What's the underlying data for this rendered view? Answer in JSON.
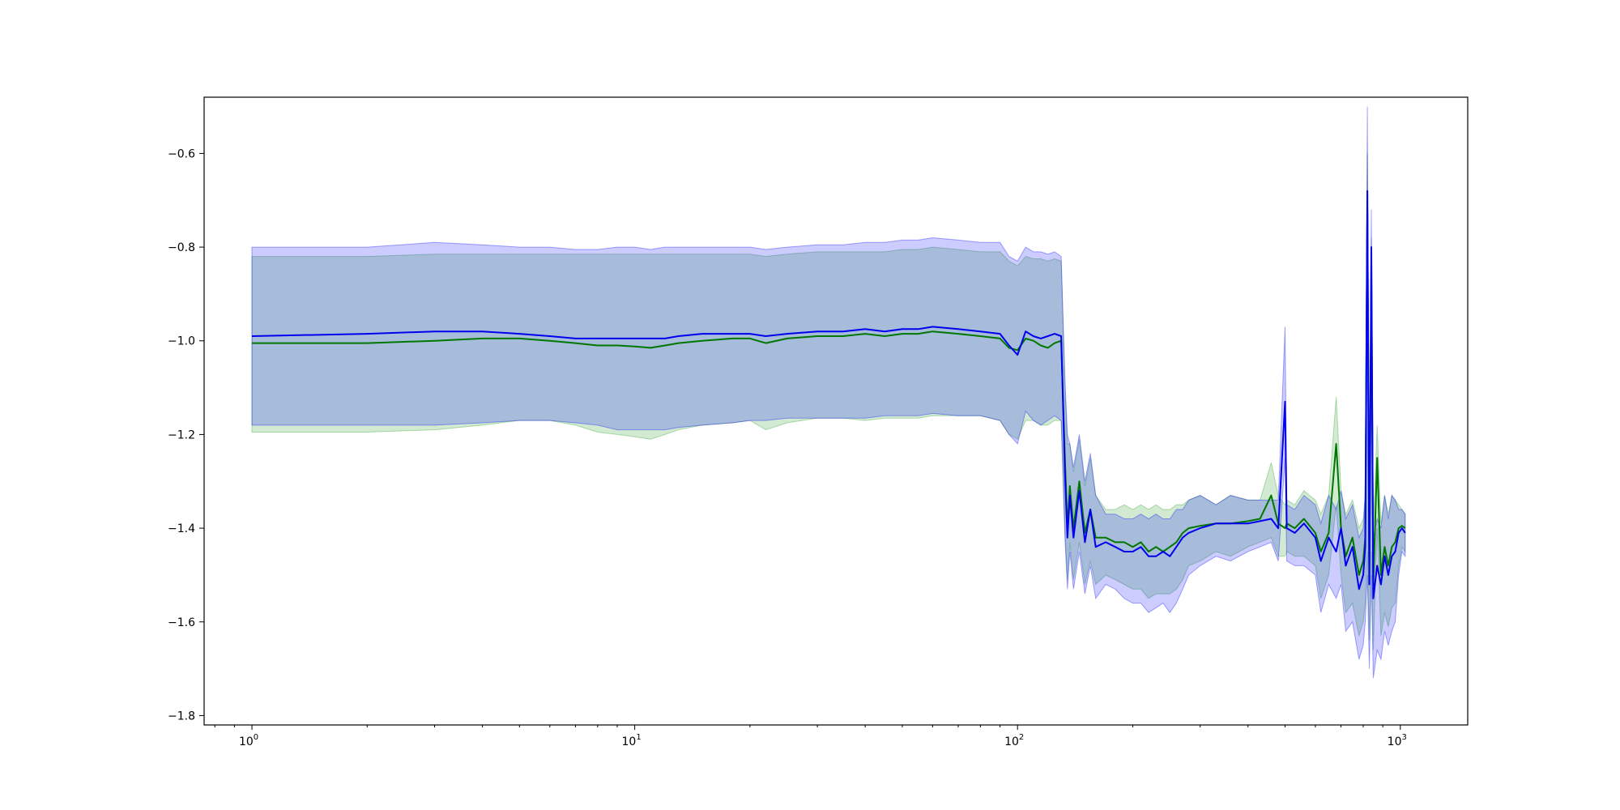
{
  "chart_data": {
    "type": "line",
    "title": "",
    "xlabel": "",
    "ylabel": "",
    "xscale": "log",
    "xlim": [
      0.75,
      1500
    ],
    "ylim": [
      -1.82,
      -0.48
    ],
    "grid": false,
    "legend": "none",
    "x_ticks": [
      {
        "base": "10",
        "exp": "0",
        "value": 1
      },
      {
        "base": "10",
        "exp": "1",
        "value": 10
      },
      {
        "base": "10",
        "exp": "2",
        "value": 100
      },
      {
        "base": "10",
        "exp": "3",
        "value": 1000
      }
    ],
    "y_ticks": [
      {
        "label": "−0.6",
        "value": -0.6
      },
      {
        "label": "−0.8",
        "value": -0.8
      },
      {
        "label": "−1.0",
        "value": -1.0
      },
      {
        "label": "−1.2",
        "value": -1.2
      },
      {
        "label": "−1.4",
        "value": -1.4
      },
      {
        "label": "−1.6",
        "value": -1.6
      },
      {
        "label": "−1.8",
        "value": -1.8
      }
    ],
    "colors": {
      "blue_line": "#0000ee",
      "green_line": "#007700",
      "blue_band": "#0000ff",
      "green_band": "#2ca02c"
    },
    "series": [
      {
        "color": "#0000ee",
        "band_color": "#0000ff",
        "points": [
          [
            1,
            -0.99,
            -1.18,
            -0.8
          ],
          [
            2,
            -0.985,
            -1.18,
            -0.8
          ],
          [
            3,
            -0.98,
            -1.18,
            -0.79
          ],
          [
            4,
            -0.98,
            -1.175,
            -0.795
          ],
          [
            5,
            -0.985,
            -1.17,
            -0.8
          ],
          [
            6,
            -0.99,
            -1.17,
            -0.8
          ],
          [
            7,
            -0.995,
            -1.175,
            -0.805
          ],
          [
            8,
            -0.995,
            -1.18,
            -0.805
          ],
          [
            9,
            -0.995,
            -1.19,
            -0.8
          ],
          [
            10,
            -0.995,
            -1.19,
            -0.8
          ],
          [
            11,
            -0.995,
            -1.19,
            -0.805
          ],
          [
            12,
            -0.995,
            -1.19,
            -0.8
          ],
          [
            13,
            -0.99,
            -1.185,
            -0.8
          ],
          [
            15,
            -0.985,
            -1.18,
            -0.8
          ],
          [
            18,
            -0.985,
            -1.175,
            -0.8
          ],
          [
            20,
            -0.985,
            -1.17,
            -0.8
          ],
          [
            22,
            -0.99,
            -1.17,
            -0.805
          ],
          [
            25,
            -0.985,
            -1.165,
            -0.8
          ],
          [
            30,
            -0.98,
            -1.165,
            -0.795
          ],
          [
            35,
            -0.98,
            -1.165,
            -0.795
          ],
          [
            40,
            -0.975,
            -1.165,
            -0.79
          ],
          [
            45,
            -0.98,
            -1.16,
            -0.79
          ],
          [
            50,
            -0.975,
            -1.16,
            -0.785
          ],
          [
            55,
            -0.975,
            -1.16,
            -0.785
          ],
          [
            60,
            -0.97,
            -1.155,
            -0.78
          ],
          [
            70,
            -0.975,
            -1.16,
            -0.785
          ],
          [
            80,
            -0.98,
            -1.16,
            -0.79
          ],
          [
            90,
            -0.985,
            -1.17,
            -0.79
          ],
          [
            95,
            -1.01,
            -1.2,
            -0.82
          ],
          [
            100,
            -1.03,
            -1.22,
            -0.83
          ],
          [
            105,
            -0.98,
            -1.15,
            -0.8
          ],
          [
            110,
            -0.99,
            -1.17,
            -0.81
          ],
          [
            115,
            -0.995,
            -1.18,
            -0.81
          ],
          [
            120,
            -0.99,
            -1.17,
            -0.815
          ],
          [
            125,
            -0.985,
            -1.16,
            -0.81
          ],
          [
            130,
            -0.99,
            -1.17,
            -0.82
          ],
          [
            133,
            -1.28,
            -1.42,
            -1.08
          ],
          [
            135,
            -1.42,
            -1.53,
            -1.2
          ],
          [
            137,
            -1.33,
            -1.45,
            -1.22
          ],
          [
            140,
            -1.42,
            -1.53,
            -1.27
          ],
          [
            145,
            -1.32,
            -1.45,
            -1.2
          ],
          [
            150,
            -1.43,
            -1.54,
            -1.3
          ],
          [
            155,
            -1.36,
            -1.48,
            -1.24
          ],
          [
            160,
            -1.44,
            -1.55,
            -1.33
          ],
          [
            170,
            -1.43,
            -1.52,
            -1.37
          ],
          [
            180,
            -1.44,
            -1.53,
            -1.37
          ],
          [
            190,
            -1.45,
            -1.55,
            -1.38
          ],
          [
            200,
            -1.45,
            -1.56,
            -1.38
          ],
          [
            210,
            -1.44,
            -1.56,
            -1.37
          ],
          [
            220,
            -1.46,
            -1.58,
            -1.38
          ],
          [
            230,
            -1.46,
            -1.57,
            -1.37
          ],
          [
            240,
            -1.45,
            -1.56,
            -1.38
          ],
          [
            250,
            -1.46,
            -1.58,
            -1.38
          ],
          [
            260,
            -1.44,
            -1.56,
            -1.36
          ],
          [
            270,
            -1.42,
            -1.53,
            -1.36
          ],
          [
            280,
            -1.41,
            -1.5,
            -1.34
          ],
          [
            300,
            -1.4,
            -1.48,
            -1.33
          ],
          [
            330,
            -1.39,
            -1.46,
            -1.35
          ],
          [
            360,
            -1.39,
            -1.47,
            -1.33
          ],
          [
            400,
            -1.39,
            -1.45,
            -1.34
          ],
          [
            430,
            -1.385,
            -1.44,
            -1.34
          ],
          [
            460,
            -1.38,
            -1.43,
            -1.34
          ],
          [
            480,
            -1.4,
            -1.47,
            -1.34
          ],
          [
            500,
            -1.13,
            -1.25,
            -0.97
          ],
          [
            505,
            -1.4,
            -1.47,
            -1.35
          ],
          [
            530,
            -1.41,
            -1.48,
            -1.36
          ],
          [
            560,
            -1.39,
            -1.48,
            -1.33
          ],
          [
            600,
            -1.42,
            -1.5,
            -1.35
          ],
          [
            620,
            -1.47,
            -1.58,
            -1.39
          ],
          [
            650,
            -1.42,
            -1.52,
            -1.33
          ],
          [
            680,
            -1.45,
            -1.55,
            -1.36
          ],
          [
            700,
            -1.4,
            -1.52,
            -1.32
          ],
          [
            720,
            -1.48,
            -1.62,
            -1.38
          ],
          [
            750,
            -1.44,
            -1.6,
            -1.35
          ],
          [
            780,
            -1.53,
            -1.68,
            -1.42
          ],
          [
            800,
            -1.5,
            -1.65,
            -1.4
          ],
          [
            810,
            -1.44,
            -1.6,
            -1.33
          ],
          [
            820,
            -0.68,
            -1.5,
            -0.5
          ],
          [
            830,
            -1.52,
            -1.7,
            -1.4
          ],
          [
            840,
            -0.8,
            -1.5,
            -0.72
          ],
          [
            850,
            -1.55,
            -1.72,
            -1.42
          ],
          [
            870,
            -1.48,
            -1.66,
            -1.38
          ],
          [
            890,
            -1.52,
            -1.68,
            -1.4
          ],
          [
            910,
            -1.46,
            -1.62,
            -1.33
          ],
          [
            930,
            -1.5,
            -1.65,
            -1.38
          ],
          [
            950,
            -1.46,
            -1.62,
            -1.33
          ],
          [
            970,
            -1.45,
            -1.6,
            -1.34
          ],
          [
            990,
            -1.41,
            -1.5,
            -1.36
          ],
          [
            1010,
            -1.4,
            -1.45,
            -1.36
          ],
          [
            1030,
            -1.41,
            -1.46,
            -1.37
          ]
        ]
      },
      {
        "color": "#007700",
        "band_color": "#2ca02c",
        "points": [
          [
            1,
            -1.005,
            -1.195,
            -0.82
          ],
          [
            2,
            -1.005,
            -1.195,
            -0.82
          ],
          [
            3,
            -1.0,
            -1.19,
            -0.815
          ],
          [
            4,
            -0.995,
            -1.18,
            -0.815
          ],
          [
            5,
            -0.995,
            -1.17,
            -0.815
          ],
          [
            6,
            -1.0,
            -1.17,
            -0.815
          ],
          [
            7,
            -1.005,
            -1.18,
            -0.815
          ],
          [
            8,
            -1.01,
            -1.195,
            -0.815
          ],
          [
            9,
            -1.01,
            -1.2,
            -0.815
          ],
          [
            10,
            -1.012,
            -1.205,
            -0.815
          ],
          [
            11,
            -1.015,
            -1.21,
            -0.815
          ],
          [
            12,
            -1.01,
            -1.2,
            -0.815
          ],
          [
            13,
            -1.005,
            -1.19,
            -0.815
          ],
          [
            15,
            -1.0,
            -1.18,
            -0.815
          ],
          [
            18,
            -0.995,
            -1.175,
            -0.815
          ],
          [
            20,
            -0.995,
            -1.17,
            -0.815
          ],
          [
            22,
            -1.005,
            -1.19,
            -0.82
          ],
          [
            25,
            -0.995,
            -1.175,
            -0.815
          ],
          [
            30,
            -0.99,
            -1.165,
            -0.81
          ],
          [
            35,
            -0.99,
            -1.165,
            -0.81
          ],
          [
            40,
            -0.985,
            -1.17,
            -0.81
          ],
          [
            45,
            -0.99,
            -1.165,
            -0.81
          ],
          [
            50,
            -0.985,
            -1.165,
            -0.805
          ],
          [
            55,
            -0.985,
            -1.165,
            -0.805
          ],
          [
            60,
            -0.98,
            -1.16,
            -0.8
          ],
          [
            70,
            -0.985,
            -1.16,
            -0.805
          ],
          [
            80,
            -0.99,
            -1.16,
            -0.81
          ],
          [
            90,
            -0.995,
            -1.17,
            -0.81
          ],
          [
            95,
            -1.015,
            -1.2,
            -0.83
          ],
          [
            100,
            -1.02,
            -1.21,
            -0.84
          ],
          [
            105,
            -0.995,
            -1.17,
            -0.82
          ],
          [
            110,
            -1.0,
            -1.17,
            -0.825
          ],
          [
            115,
            -1.01,
            -1.18,
            -0.825
          ],
          [
            120,
            -1.015,
            -1.18,
            -0.83
          ],
          [
            125,
            -1.005,
            -1.17,
            -0.825
          ],
          [
            130,
            -1.0,
            -1.17,
            -0.83
          ],
          [
            133,
            -1.25,
            -1.4,
            -1.1
          ],
          [
            135,
            -1.4,
            -1.51,
            -1.22
          ],
          [
            137,
            -1.31,
            -1.43,
            -1.22
          ],
          [
            140,
            -1.4,
            -1.51,
            -1.28
          ],
          [
            145,
            -1.3,
            -1.43,
            -1.21
          ],
          [
            150,
            -1.41,
            -1.52,
            -1.31
          ],
          [
            155,
            -1.36,
            -1.47,
            -1.25
          ],
          [
            160,
            -1.42,
            -1.52,
            -1.33
          ],
          [
            170,
            -1.42,
            -1.5,
            -1.36
          ],
          [
            180,
            -1.43,
            -1.51,
            -1.36
          ],
          [
            190,
            -1.43,
            -1.52,
            -1.35
          ],
          [
            200,
            -1.44,
            -1.53,
            -1.36
          ],
          [
            210,
            -1.43,
            -1.53,
            -1.35
          ],
          [
            220,
            -1.45,
            -1.55,
            -1.36
          ],
          [
            230,
            -1.44,
            -1.54,
            -1.35
          ],
          [
            240,
            -1.45,
            -1.54,
            -1.36
          ],
          [
            250,
            -1.44,
            -1.54,
            -1.36
          ],
          [
            260,
            -1.43,
            -1.53,
            -1.35
          ],
          [
            270,
            -1.41,
            -1.51,
            -1.35
          ],
          [
            280,
            -1.4,
            -1.48,
            -1.34
          ],
          [
            300,
            -1.395,
            -1.47,
            -1.33
          ],
          [
            330,
            -1.39,
            -1.45,
            -1.35
          ],
          [
            360,
            -1.39,
            -1.46,
            -1.33
          ],
          [
            400,
            -1.385,
            -1.44,
            -1.34
          ],
          [
            430,
            -1.38,
            -1.43,
            -1.34
          ],
          [
            460,
            -1.33,
            -1.42,
            -1.26
          ],
          [
            480,
            -1.39,
            -1.46,
            -1.33
          ],
          [
            500,
            -1.4,
            -1.46,
            -1.35
          ],
          [
            505,
            -1.39,
            -1.45,
            -1.34
          ],
          [
            530,
            -1.4,
            -1.46,
            -1.35
          ],
          [
            560,
            -1.38,
            -1.46,
            -1.32
          ],
          [
            600,
            -1.41,
            -1.48,
            -1.34
          ],
          [
            620,
            -1.45,
            -1.55,
            -1.37
          ],
          [
            650,
            -1.41,
            -1.5,
            -1.33
          ],
          [
            680,
            -1.22,
            -1.35,
            -1.12
          ],
          [
            700,
            -1.4,
            -1.5,
            -1.32
          ],
          [
            720,
            -1.46,
            -1.58,
            -1.37
          ],
          [
            750,
            -1.42,
            -1.56,
            -1.34
          ],
          [
            780,
            -1.5,
            -1.63,
            -1.4
          ],
          [
            800,
            -1.47,
            -1.6,
            -1.38
          ],
          [
            810,
            -1.42,
            -1.56,
            -1.33
          ],
          [
            820,
            -0.72,
            -1.45,
            -0.6
          ],
          [
            830,
            -1.49,
            -1.64,
            -1.38
          ],
          [
            840,
            -0.84,
            -1.45,
            -0.78
          ],
          [
            850,
            -1.52,
            -1.66,
            -1.4
          ],
          [
            870,
            -1.25,
            -1.4,
            -1.18
          ],
          [
            890,
            -1.5,
            -1.63,
            -1.39
          ],
          [
            910,
            -1.44,
            -1.58,
            -1.33
          ],
          [
            930,
            -1.48,
            -1.61,
            -1.37
          ],
          [
            950,
            -1.44,
            -1.57,
            -1.33
          ],
          [
            970,
            -1.43,
            -1.56,
            -1.34
          ],
          [
            990,
            -1.4,
            -1.48,
            -1.35
          ],
          [
            1010,
            -1.395,
            -1.44,
            -1.36
          ],
          [
            1030,
            -1.4,
            -1.45,
            -1.37
          ]
        ]
      }
    ]
  }
}
